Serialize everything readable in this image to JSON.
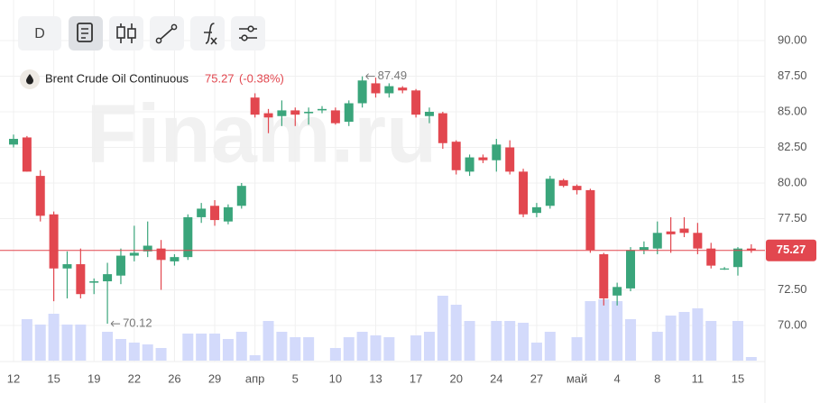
{
  "chart_data": {
    "type": "candlestick",
    "title": "Brent Crude Oil Continuous",
    "last_price": 75.27,
    "change": "(-0.38%)",
    "watermark": "Finam.ru",
    "interval": "D",
    "categories": [
      "12",
      null,
      null,
      "15",
      null,
      null,
      "19",
      null,
      null,
      "22",
      null,
      null,
      "26",
      null,
      null,
      "29",
      null,
      null,
      "апр",
      null,
      null,
      "5",
      null,
      null,
      "10",
      null,
      null,
      "13",
      null,
      null,
      "17",
      null,
      null,
      "20",
      null,
      null,
      "24",
      null,
      null,
      "27",
      null,
      null,
      "май",
      null,
      null,
      "4",
      null,
      null,
      "8",
      null,
      null,
      "11",
      null,
      null,
      "15",
      null
    ],
    "open": [
      82.7,
      83.2,
      80.5,
      77.8,
      74.0,
      74.3,
      73.0,
      73.1,
      73.5,
      74.9,
      75.2,
      75.4,
      74.5,
      74.8,
      77.6,
      78.4,
      77.3,
      78.4,
      86.0,
      84.9,
      84.7,
      85.1,
      84.9,
      85.1,
      85.1,
      84.3,
      85.6,
      87.0,
      86.3,
      86.7,
      86.5,
      84.7,
      84.9,
      82.9,
      80.8,
      81.8,
      81.6,
      82.5,
      80.8,
      77.9,
      78.4,
      80.2,
      79.8,
      79.5,
      75.0,
      72.1,
      72.6,
      75.3,
      75.4,
      76.6,
      76.8,
      76.5,
      75.4,
      74.0,
      74.1,
      75.4
    ],
    "high": [
      83.4,
      83.3,
      80.9,
      78.0,
      75.2,
      75.4,
      73.3,
      74.4,
      75.4,
      77.0,
      77.3,
      76.0,
      75.0,
      77.8,
      78.6,
      78.8,
      78.5,
      80.0,
      86.3,
      85.2,
      85.8,
      85.3,
      85.3,
      85.4,
      85.3,
      85.8,
      87.49,
      87.4,
      87.0,
      86.8,
      86.6,
      85.3,
      85.0,
      83.0,
      82.0,
      82.0,
      83.1,
      83.0,
      81.0,
      78.6,
      80.5,
      80.3,
      79.9,
      79.6,
      75.1,
      73.0,
      75.5,
      75.9,
      77.3,
      77.6,
      77.6,
      77.2,
      75.8,
      74.1,
      75.5,
      75.7
    ],
    "low": [
      82.5,
      80.8,
      77.3,
      71.7,
      71.9,
      71.9,
      72.2,
      70.12,
      72.9,
      74.5,
      74.8,
      72.5,
      74.2,
      74.6,
      77.2,
      77.0,
      77.1,
      78.2,
      84.6,
      83.5,
      84.0,
      84.0,
      84.1,
      84.9,
      84.1,
      84.0,
      85.3,
      86.0,
      86.0,
      86.3,
      84.6,
      84.2,
      82.4,
      80.6,
      80.5,
      81.4,
      80.8,
      80.6,
      77.6,
      77.6,
      78.2,
      79.7,
      79.2,
      75.1,
      71.4,
      71.4,
      72.4,
      75.0,
      75.0,
      75.1,
      76.2,
      75.0,
      74.0,
      73.9,
      73.5,
      75.1
    ],
    "close": [
      83.1,
      80.8,
      77.7,
      74.0,
      74.3,
      72.2,
      73.1,
      73.6,
      74.9,
      75.1,
      75.6,
      74.6,
      74.8,
      77.6,
      78.2,
      77.4,
      78.3,
      79.8,
      84.8,
      84.6,
      85.1,
      84.8,
      85.0,
      85.2,
      84.2,
      85.6,
      87.2,
      86.3,
      86.8,
      86.5,
      84.8,
      85.0,
      82.8,
      80.9,
      81.8,
      81.6,
      82.7,
      80.8,
      77.8,
      78.3,
      80.3,
      79.8,
      79.5,
      75.3,
      71.9,
      72.7,
      75.3,
      75.5,
      76.5,
      76.4,
      76.5,
      75.4,
      74.2,
      74.0,
      75.4,
      75.27
    ],
    "volume": [
      0,
      46,
      40,
      52,
      40,
      40,
      0,
      32,
      24,
      20,
      18,
      14,
      0,
      30,
      30,
      30,
      24,
      32,
      6,
      44,
      32,
      26,
      26,
      0,
      14,
      26,
      32,
      28,
      26,
      0,
      28,
      32,
      72,
      62,
      44,
      0,
      44,
      44,
      42,
      20,
      32,
      0,
      26,
      66,
      68,
      66,
      46,
      0,
      32,
      50,
      54,
      58,
      44,
      0,
      44,
      4
    ],
    "up_color": "#3aa57b",
    "down_color": "#e2474f",
    "volume_color": "#d3dafb",
    "ylim": [
      67.53,
      92.85
    ],
    "yticks": [
      {
        "value": 70,
        "label": "70.00"
      },
      {
        "value": 72.5,
        "label": "72.50"
      },
      {
        "value": 77.5,
        "label": "77.50"
      },
      {
        "value": 80,
        "label": "80.00"
      },
      {
        "value": 82.5,
        "label": "82.50"
      },
      {
        "value": 85,
        "label": "85.00"
      },
      {
        "value": 87.5,
        "label": "87.50"
      },
      {
        "value": 90,
        "label": "90.00"
      }
    ],
    "grid": true
  }
}
